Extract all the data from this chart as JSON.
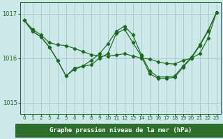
{
  "title": "Graphe pression niveau de la mer (hPa)",
  "bg_color": "#cce8ea",
  "grid_color": "#aacccc",
  "line_color": "#1a6b1a",
  "label_bg": "#2d6e2d",
  "label_fg": "#ffffff",
  "xlim": [
    -0.5,
    23.5
  ],
  "ylim": [
    1014.75,
    1017.25
  ],
  "yticks": [
    1015,
    1016,
    1017
  ],
  "xticks": [
    0,
    1,
    2,
    3,
    4,
    5,
    6,
    7,
    8,
    9,
    10,
    11,
    12,
    13,
    14,
    15,
    16,
    17,
    18,
    19,
    20,
    21,
    22,
    23
  ],
  "series": [
    [
      1016.85,
      1016.65,
      1016.52,
      1016.35,
      1016.3,
      1016.28,
      1016.22,
      1016.15,
      1016.08,
      1016.05,
      1016.05,
      1016.07,
      1016.1,
      1016.05,
      1016.0,
      1015.98,
      1015.92,
      1015.88,
      1015.87,
      1015.95,
      1016.0,
      1016.1,
      1016.45,
      1017.02
    ],
    [
      1016.85,
      1016.6,
      1016.48,
      1016.25,
      1015.95,
      1015.6,
      1015.75,
      1015.82,
      1015.85,
      1016.0,
      1016.1,
      1016.55,
      1016.65,
      1016.35,
      1016.05,
      1015.65,
      1015.55,
      1015.55,
      1015.57,
      1015.8,
      1016.0,
      1016.28,
      1016.6,
      1017.02
    ],
    [
      1016.85,
      1016.6,
      1016.48,
      1016.25,
      1015.95,
      1015.6,
      1015.78,
      1015.82,
      1015.95,
      1016.1,
      1016.32,
      1016.6,
      1016.72,
      1016.52,
      1016.08,
      1015.72,
      1015.58,
      1015.58,
      1015.6,
      1015.82,
      1016.02,
      1016.3,
      1016.62,
      1017.02
    ]
  ]
}
